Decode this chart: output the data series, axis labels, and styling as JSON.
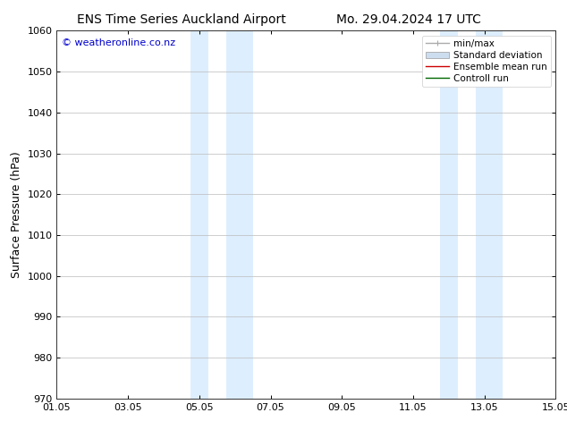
{
  "title_left": "ENS Time Series Auckland Airport",
  "title_right": "Mo. 29.04.2024 17 UTC",
  "ylabel": "Surface Pressure (hPa)",
  "ylim": [
    970,
    1060
  ],
  "yticks": [
    970,
    980,
    990,
    1000,
    1010,
    1020,
    1030,
    1040,
    1050,
    1060
  ],
  "xlim_start": 0,
  "xlim_end": 14,
  "xtick_labels": [
    "01.05",
    "03.05",
    "05.05",
    "07.05",
    "09.05",
    "11.05",
    "13.05",
    "15.05"
  ],
  "xtick_positions": [
    0,
    2,
    4,
    6,
    8,
    10,
    12,
    14
  ],
  "shaded_bands": [
    {
      "x_start": 3.75,
      "x_end": 4.25
    },
    {
      "x_start": 4.75,
      "x_end": 5.5
    },
    {
      "x_start": 10.75,
      "x_end": 11.25
    },
    {
      "x_start": 11.75,
      "x_end": 12.5
    }
  ],
  "shaded_color": "#ddeeff",
  "background_color": "#ffffff",
  "grid_color": "#bbbbbb",
  "watermark_text": "© weatheronline.co.nz",
  "watermark_color": "#0000cc",
  "legend_entries": [
    {
      "label": "min/max",
      "color": "#aaaaaa",
      "lw": 1.0
    },
    {
      "label": "Standard deviation",
      "color": "#ccddef",
      "lw": 6
    },
    {
      "label": "Ensemble mean run",
      "color": "#cc0000",
      "lw": 1.0
    },
    {
      "label": "Controll run",
      "color": "#006600",
      "lw": 1.0
    }
  ],
  "title_fontsize": 10,
  "axis_fontsize": 9,
  "tick_fontsize": 8,
  "watermark_fontsize": 8,
  "legend_fontsize": 7.5
}
